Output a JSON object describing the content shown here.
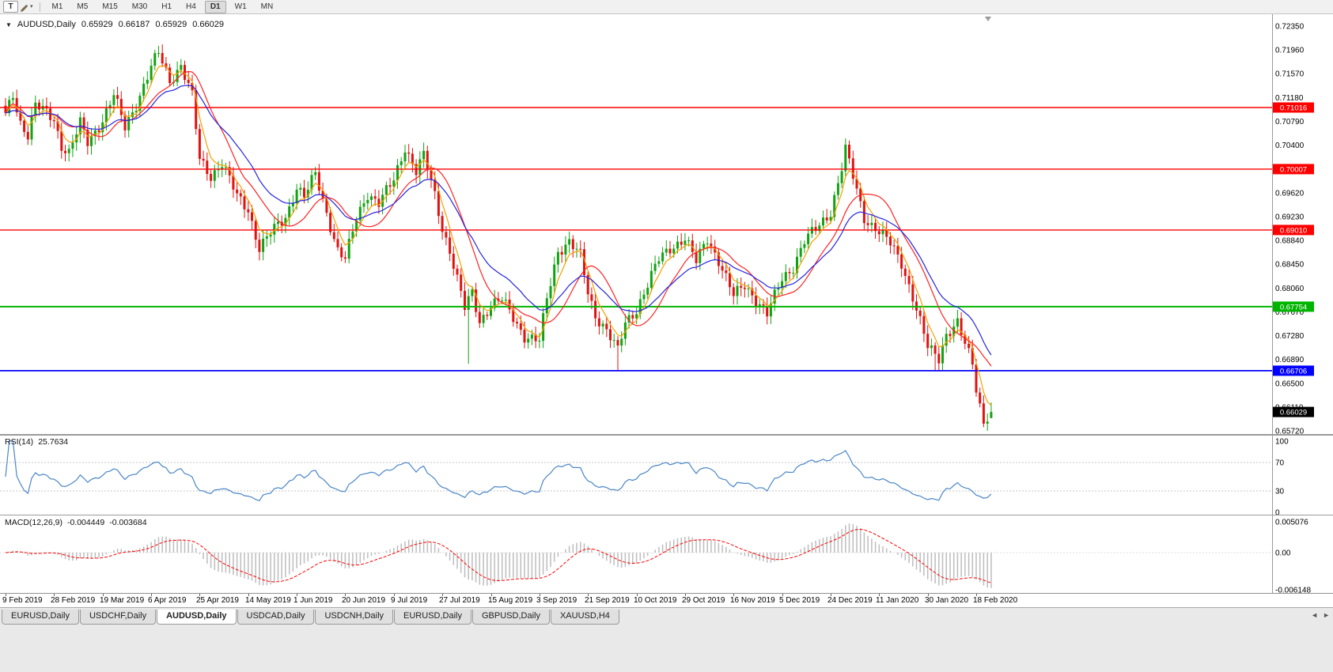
{
  "toolbar": {
    "text_tool_label": "T",
    "draw_caret": "▾",
    "timeframes": [
      "M1",
      "M5",
      "M15",
      "M30",
      "H1",
      "H4",
      "D1",
      "W1",
      "MN"
    ],
    "active_timeframe": "D1"
  },
  "chart": {
    "symbol_dropdown_icon": "▼",
    "symbol_title": "AUDUSD,Daily",
    "ohlc": {
      "open": "0.65929",
      "high": "0.66187",
      "low": "0.65929",
      "close": "0.66029"
    }
  },
  "tabs": {
    "items": [
      "EURUSD,Daily",
      "USDCHF,Daily",
      "AUDUSD,Daily",
      "USDCAD,Daily",
      "USDCNH,Daily",
      "EURUSD,Daily",
      "GBPUSD,Daily",
      "XAUUSD,H4"
    ],
    "active_index": 2,
    "scroll_left_icon": "◄",
    "scroll_right_icon": "►"
  },
  "chart_data": {
    "type": "candlestick",
    "symbol": "AUDUSD",
    "timeframe": "Daily",
    "bars": 265,
    "bars_per_label": 13,
    "y_axis": {
      "max": 0.7235,
      "min": 0.6572,
      "tick": 0.0039,
      "labels": [
        "0.72350",
        "0.71960",
        "0.71570",
        "0.71180",
        "0.70790",
        "0.70400",
        "0.70010",
        "0.69620",
        "0.69230",
        "0.68840",
        "0.68450",
        "0.68060",
        "0.67670",
        "0.67280",
        "0.66890",
        "0.66500",
        "0.66110",
        "0.65720"
      ]
    },
    "x_axis": {
      "labels": [
        "9 Feb 2019",
        "28 Feb 2019",
        "19 Mar 2019",
        "6 Apr 2019",
        "25 Apr 2019",
        "14 May 2019",
        "1 Jun 2019",
        "20 Jun 2019",
        "9 Jul 2019",
        "27 Jul 2019",
        "15 Aug 2019",
        "3 Sep 2019",
        "21 Sep 2019",
        "10 Oct 2019",
        "29 Oct 2019",
        "16 Nov 2019",
        "5 Dec 2019",
        "24 Dec 2019",
        "11 Jan 2020",
        "30 Jan 2020",
        "18 Feb 2020"
      ]
    },
    "last_bar": {
      "open": 0.65929,
      "high": 0.66187,
      "low": 0.65929,
      "close": 0.66029
    },
    "close_waypoints": [
      [
        0,
        0.7088
      ],
      [
        2,
        0.7122
      ],
      [
        4,
        0.7078
      ],
      [
        6,
        0.7058
      ],
      [
        8,
        0.7105
      ],
      [
        11,
        0.7092
      ],
      [
        13,
        0.7082
      ],
      [
        15,
        0.704
      ],
      [
        17,
        0.7028
      ],
      [
        20,
        0.7075
      ],
      [
        22,
        0.7044
      ],
      [
        26,
        0.7082
      ],
      [
        29,
        0.7122
      ],
      [
        32,
        0.7068
      ],
      [
        35,
        0.7108
      ],
      [
        39,
        0.7168
      ],
      [
        41,
        0.719
      ],
      [
        44,
        0.7145
      ],
      [
        47,
        0.7172
      ],
      [
        50,
        0.712
      ],
      [
        52,
        0.7015
      ],
      [
        55,
        0.699
      ],
      [
        58,
        0.7012
      ],
      [
        62,
        0.6955
      ],
      [
        65,
        0.6935
      ],
      [
        68,
        0.6872
      ],
      [
        71,
        0.6895
      ],
      [
        75,
        0.6922
      ],
      [
        78,
        0.6972
      ],
      [
        80,
        0.6955
      ],
      [
        83,
        0.6992
      ],
      [
        86,
        0.693
      ],
      [
        89,
        0.6868
      ],
      [
        91,
        0.6852
      ],
      [
        94,
        0.692
      ],
      [
        97,
        0.6962
      ],
      [
        100,
        0.6945
      ],
      [
        104,
        0.6982
      ],
      [
        107,
        0.7038
      ],
      [
        110,
        0.6998
      ],
      [
        112,
        0.7022
      ],
      [
        115,
        0.6958
      ],
      [
        117,
        0.6905
      ],
      [
        119,
        0.6868
      ],
      [
        121,
        0.682
      ],
      [
        123,
        0.6772
      ],
      [
        125,
        0.6798
      ],
      [
        127,
        0.6752
      ],
      [
        130,
        0.6778
      ],
      [
        133,
        0.6786
      ],
      [
        136,
        0.6758
      ],
      [
        139,
        0.6728
      ],
      [
        143,
        0.6718
      ],
      [
        145,
        0.6788
      ],
      [
        148,
        0.6868
      ],
      [
        151,
        0.6882
      ],
      [
        154,
        0.6858
      ],
      [
        156,
        0.6798
      ],
      [
        158,
        0.6762
      ],
      [
        161,
        0.6738
      ],
      [
        164,
        0.6702
      ],
      [
        166,
        0.6748
      ],
      [
        169,
        0.6772
      ],
      [
        172,
        0.6812
      ],
      [
        175,
        0.6852
      ],
      [
        178,
        0.6872
      ],
      [
        182,
        0.6888
      ],
      [
        185,
        0.6848
      ],
      [
        188,
        0.6888
      ],
      [
        191,
        0.6852
      ],
      [
        195,
        0.6792
      ],
      [
        198,
        0.6812
      ],
      [
        201,
        0.6788
      ],
      [
        204,
        0.6762
      ],
      [
        208,
        0.6822
      ],
      [
        211,
        0.6842
      ],
      [
        214,
        0.6882
      ],
      [
        217,
        0.6902
      ],
      [
        221,
        0.6932
      ],
      [
        224,
        0.7002
      ],
      [
        225,
        0.7032
      ],
      [
        227,
        0.6988
      ],
      [
        230,
        0.6922
      ],
      [
        234,
        0.6898
      ],
      [
        237,
        0.6878
      ],
      [
        240,
        0.6848
      ],
      [
        243,
        0.6792
      ],
      [
        247,
        0.6708
      ],
      [
        250,
        0.6692
      ],
      [
        252,
        0.6732
      ],
      [
        255,
        0.6748
      ],
      [
        257,
        0.6712
      ],
      [
        259,
        0.6682
      ],
      [
        260,
        0.6642
      ],
      [
        262,
        0.6588
      ],
      [
        263,
        0.6598
      ],
      [
        264,
        0.66029
      ]
    ],
    "forced_extremes": {
      "highs": [
        [
          41,
          0.71965
        ]
      ],
      "lows": [
        [
          124,
          0.6682
        ],
        [
          164,
          0.66706
        ],
        [
          249,
          0.66712
        ],
        [
          263,
          0.65721
        ]
      ]
    },
    "candle_colors": {
      "bull": "#12a312",
      "bear": "#e01212"
    },
    "moving_averages": [
      {
        "type": "ema",
        "period": 5,
        "color": "#f5a000"
      },
      {
        "type": "sma",
        "period": 13,
        "color": "#ff2222"
      },
      {
        "type": "ema",
        "period": 21,
        "color": "#2424e0"
      }
    ],
    "levels": [
      {
        "price": 0.71016,
        "label": "0.71016",
        "color": "#ff0000",
        "width": 1.4
      },
      {
        "price": 0.70007,
        "label": "0.70007",
        "color": "#ff0000",
        "width": 1.4
      },
      {
        "price": 0.6901,
        "label": "0.69010",
        "color": "#ff0000",
        "width": 1.4
      },
      {
        "price": 0.67754,
        "label": "0.67754",
        "color": "#00b400",
        "width": 2
      },
      {
        "price": 0.66706,
        "label": "0.66706",
        "color": "#0000ff",
        "width": 1.8
      }
    ],
    "current_price": {
      "value": 0.66029,
      "label": "0.66029",
      "bg": "#000000"
    },
    "indicators": [
      {
        "type": "RSI",
        "label": "RSI(14)",
        "value": "25.7634",
        "period": 14,
        "levels": [
          70,
          30
        ],
        "axis_labels": [
          "100",
          "70",
          "30",
          "0"
        ],
        "color": "#4a86c6"
      },
      {
        "type": "MACD",
        "label": "MACD(12,26,9)",
        "value_main": "-0.004449",
        "value_signal": "-0.003684",
        "fast": 12,
        "slow": 26,
        "signal": 9,
        "axis_labels": [
          "0.005076",
          "0.00",
          "-0.006148"
        ],
        "histogram_color": "#bdbdbd",
        "signal_color": "#ff0000"
      }
    ]
  }
}
